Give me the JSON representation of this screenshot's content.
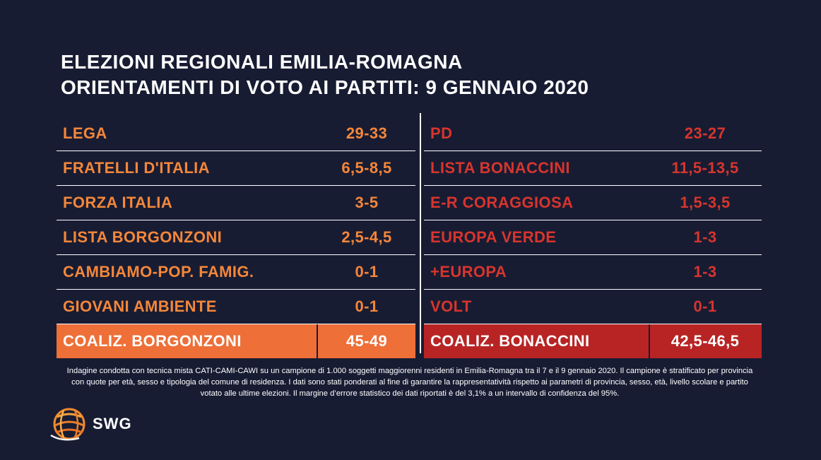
{
  "title": {
    "line1": "ELEZIONI REGIONALI EMILIA-ROMAGNA",
    "line2": "ORIENTAMENTI DI VOTO AI PARTITI: 9 GENNAIO 2020"
  },
  "colors": {
    "background": "#181c33",
    "left_text": "#f4873a",
    "right_text": "#d7352d",
    "left_total_bg": "#ee6f38",
    "right_total_bg": "#b82424"
  },
  "chart_data": {
    "type": "table",
    "columns": [
      {
        "rows": [
          {
            "party": "LEGA",
            "range": "29-33"
          },
          {
            "party": "FRATELLI D'ITALIA",
            "range": "6,5-8,5"
          },
          {
            "party": "FORZA ITALIA",
            "range": "3-5"
          },
          {
            "party": "LISTA BORGONZONI",
            "range": "2,5-4,5"
          },
          {
            "party": "CAMBIAMO-POP. FAMIG.",
            "range": "0-1"
          },
          {
            "party": "GIOVANI AMBIENTE",
            "range": "0-1"
          }
        ],
        "total": {
          "party": "COALIZ. BORGONZONI",
          "range": "45-49"
        }
      },
      {
        "rows": [
          {
            "party": "PD",
            "range": "23-27"
          },
          {
            "party": "LISTA BONACCINI",
            "range": "11,5-13,5"
          },
          {
            "party": "E-R CORAGGIOSA",
            "range": "1,5-3,5"
          },
          {
            "party": "EUROPA VERDE",
            "range": "1-3"
          },
          {
            "party": "+EUROPA",
            "range": "1-3"
          },
          {
            "party": "VOLT",
            "range": "0-1"
          }
        ],
        "total": {
          "party": "COALIZ. BONACCINI",
          "range": "42,5-46,5"
        }
      }
    ]
  },
  "footnote": "Indagine condotta con tecnica mista CATI-CAMI-CAWI su un campione di 1.000 soggetti maggiorenni residenti in Emilia-Romagna tra il 7 e il 9 gennaio 2020. Il campione è stratificato per provincia con quote per età, sesso e tipologia del comune di residenza. I dati sono stati ponderati al fine di garantire la rappresentatività rispetto ai parametri di provincia, sesso, età, livello scolare e partito votato alle ultime elezioni. Il margine d’errore statistico dei dati riportati è del 3,1% a un intervallo di confidenza del 95%.",
  "logo": {
    "icon": "globe-icon",
    "text": "SWG"
  }
}
